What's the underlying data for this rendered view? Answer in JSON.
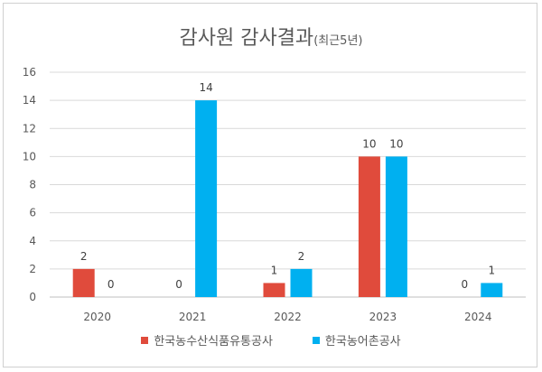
{
  "chart_data": {
    "type": "bar",
    "title": "감사원 감사결과",
    "subtitle": "(최근5년)",
    "categories": [
      "2020",
      "2021",
      "2022",
      "2023",
      "2024"
    ],
    "series": [
      {
        "name": "한국농수산식품유통공사",
        "values": [
          2,
          0,
          1,
          10,
          0
        ],
        "color": "#e04b3c"
      },
      {
        "name": "한국농어촌공사",
        "values": [
          0,
          14,
          2,
          10,
          1
        ],
        "color": "#00b0f0"
      }
    ],
    "y_ticks": [
      "0",
      "2",
      "4",
      "6",
      "8",
      "10",
      "12",
      "14",
      "16"
    ],
    "ylim": [
      0,
      16
    ],
    "grid": true,
    "legend": "bottom"
  }
}
